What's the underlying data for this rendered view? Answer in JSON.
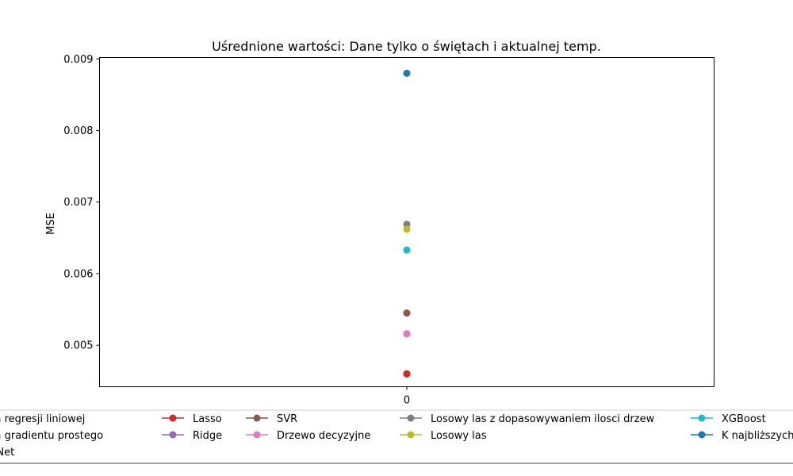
{
  "chart_data": {
    "type": "scatter",
    "title": "Uśrednione wartości: Dane tylko o świętach i aktualnej temp.",
    "xlabel": "",
    "ylabel": "MSE",
    "x_ticks": [
      "0"
    ],
    "y_ticks": [
      "0.005",
      "0.006",
      "0.007",
      "0.008",
      "0.009"
    ],
    "ylim": [
      0.00442,
      0.00902
    ],
    "xlim": [
      -1,
      1
    ],
    "grid": false,
    "legend_position": "bottom",
    "series": [
      {
        "name": "Metoda regresji liniowej",
        "color": "#1f77b4",
        "x": [
          0
        ],
        "values": [
          0.0046
        ]
      },
      {
        "name": "Metoda gradientu prostego",
        "color": "#ff7f0e",
        "x": [
          0
        ],
        "values": [
          0.0046
        ]
      },
      {
        "name": "ElasticNet",
        "color": "#2ca02c",
        "x": [
          0
        ],
        "values": [
          0.0046
        ]
      },
      {
        "name": "Lasso",
        "color": "#d62728",
        "x": [
          0
        ],
        "values": [
          0.0046
        ]
      },
      {
        "name": "Ridge",
        "color": "#9467bd",
        "x": [
          0
        ],
        "values": [
          0.00516
        ]
      },
      {
        "name": "SVR",
        "color": "#8c564b",
        "x": [
          0
        ],
        "values": [
          0.00545
        ]
      },
      {
        "name": "Drzewo decyzyjne",
        "color": "#e377c2",
        "x": [
          0
        ],
        "values": [
          0.00516
        ]
      },
      {
        "name": "Losowy las z dopasowywaniem ilosci drzew",
        "color": "#7f7f7f",
        "x": [
          0
        ],
        "values": [
          0.00669
        ]
      },
      {
        "name": "Losowy las",
        "color": "#bcbd22",
        "x": [
          0
        ],
        "values": [
          0.00662
        ]
      },
      {
        "name": "XGBoost",
        "color": "#17becf",
        "x": [
          0
        ],
        "values": [
          0.00633
        ]
      },
      {
        "name": "K najbliższych sąsiadów",
        "color": "#1f77b4",
        "x": [
          0
        ],
        "values": [
          0.0088
        ]
      }
    ]
  }
}
